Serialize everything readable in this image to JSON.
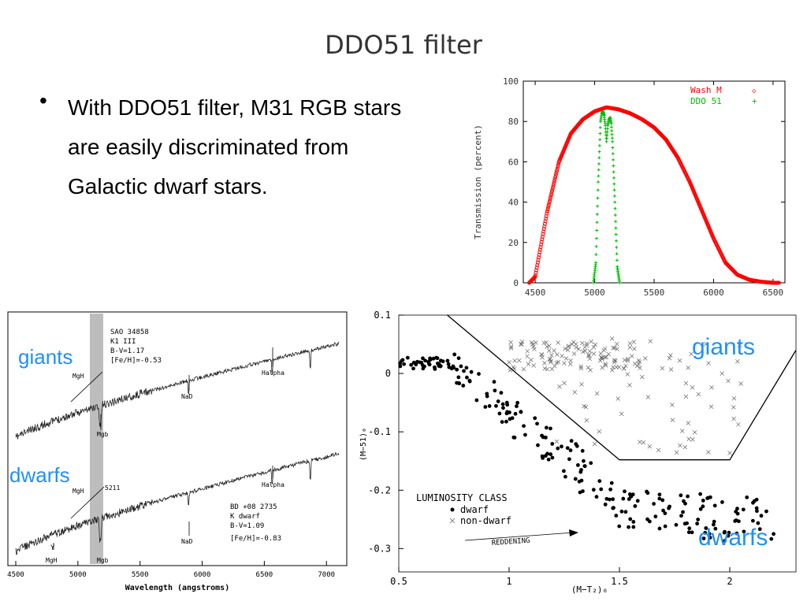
{
  "slide": {
    "title": "DDO51 filter",
    "bullet": "With DDO51 filter, M31 RGB stars are easily discriminated from Galactic dwarf stars."
  },
  "labels": {
    "giants": "giants",
    "dwarfs": "dwarfs"
  },
  "colors": {
    "accent_label": "#1e90ff",
    "wash_m": "#ff0000",
    "ddo51": "#00bb00"
  },
  "chart_data": [
    {
      "type": "line",
      "ylabel": "Transmission (percent)",
      "xlim": [
        4400,
        6600
      ],
      "ylim": [
        0,
        100
      ],
      "xticks": [
        4500,
        5000,
        5500,
        6000,
        6500
      ],
      "yticks": [
        0,
        20,
        40,
        60,
        80,
        100
      ],
      "legend_position": "top-right",
      "series": [
        {
          "name": "Wash M",
          "marker": "◇",
          "color": "#ff0000",
          "x": [
            4450,
            4500,
            4600,
            4700,
            4800,
            4900,
            5000,
            5100,
            5200,
            5300,
            5400,
            5500,
            5600,
            5700,
            5800,
            5900,
            6000,
            6100,
            6200,
            6300,
            6400,
            6500,
            6550
          ],
          "y": [
            0,
            3,
            35,
            60,
            74,
            81,
            85,
            87,
            86,
            84,
            81,
            77,
            71,
            62,
            50,
            36,
            22,
            10,
            4,
            1.5,
            0.5,
            0,
            0
          ]
        },
        {
          "name": "DDO 51",
          "marker": "+",
          "color": "#00bb00",
          "x": [
            4990,
            5010,
            5030,
            5050,
            5060,
            5070,
            5080,
            5090,
            5100,
            5110,
            5120,
            5130,
            5140,
            5150,
            5170,
            5190,
            5210
          ],
          "y": [
            0,
            10,
            50,
            80,
            84,
            85,
            83,
            78,
            70,
            78,
            81,
            82,
            79,
            70,
            40,
            8,
            0
          ]
        }
      ]
    },
    {
      "type": "line",
      "xlabel": "Wavelength (angstroms)",
      "xlim": [
        4500,
        7100
      ],
      "xticks": [
        4500,
        5000,
        5500,
        6000,
        6500,
        7000
      ],
      "annotations": {
        "giant_star": [
          "SAO 34858",
          "K1 III",
          "B-V=1.17",
          "[Fe/H]=-0.53"
        ],
        "dwarf_star": [
          "BD +08 2735",
          "K dwarf",
          "B-V=1.09",
          "[Fe/H]=-0.83"
        ],
        "lines": {
          "mgh": "MgH",
          "mgb": "Mgb",
          "nad": "NaD",
          "halpha": "Halpha",
          "w5211": "5211",
          "y": "Y"
        }
      }
    },
    {
      "type": "scatter",
      "xlabel": "(M−T₂)₀",
      "ylabel": "(M−51)₀",
      "xlim": [
        0.5,
        2.3
      ],
      "ylim": [
        -0.34,
        0.1
      ],
      "xticks": [
        "0.5",
        "1",
        "1.5",
        "2"
      ],
      "yticks": [
        "0.1",
        "0",
        "-0.1",
        "-0.2",
        "-0.3"
      ],
      "legend": {
        "title": "LUMINOSITY CLASS",
        "entries": [
          "dwarf",
          "non-dwarf"
        ]
      },
      "annotation": "REDDENING",
      "separator_line": {
        "x": [
          0.72,
          1.5,
          2.0,
          2.3
        ],
        "y": [
          0.1,
          -0.148,
          -0.148,
          0.04
        ]
      }
    }
  ]
}
